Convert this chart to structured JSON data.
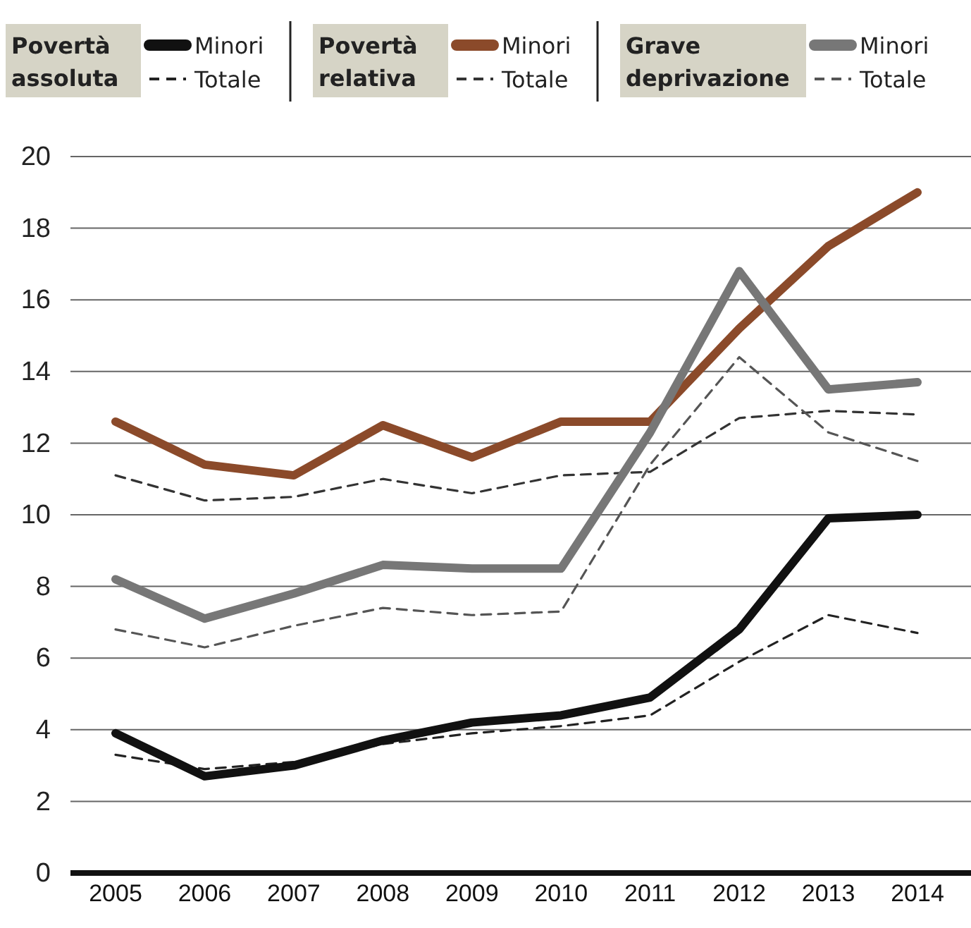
{
  "chart_data": {
    "type": "line",
    "categories": [
      "2005",
      "2006",
      "2007",
      "2008",
      "2009",
      "2010",
      "2011",
      "2012",
      "2013",
      "2014"
    ],
    "series": [
      {
        "name": "Minori",
        "color": "#111111",
        "line_style": "solid",
        "values": [
          3.9,
          2.7,
          3.0,
          3.7,
          4.2,
          4.4,
          4.9,
          6.8,
          9.9,
          10.0
        ]
      },
      {
        "name": "Totale",
        "color": "#222222",
        "line_style": "dashed",
        "values": [
          3.3,
          2.9,
          3.1,
          3.6,
          3.9,
          4.1,
          4.4,
          5.9,
          7.2,
          6.7
        ]
      },
      {
        "name": "Minori",
        "color": "#8b4a2a",
        "line_style": "solid",
        "values": [
          12.6,
          11.4,
          11.1,
          12.5,
          11.6,
          12.6,
          12.6,
          15.2,
          17.5,
          19.0
        ]
      },
      {
        "name": "Totale",
        "color": "#333333",
        "line_style": "dashed",
        "values": [
          11.1,
          10.4,
          10.5,
          11.0,
          10.6,
          11.1,
          11.2,
          12.7,
          12.9,
          12.8
        ]
      },
      {
        "name": "Minori",
        "color": "#777777",
        "line_style": "solid",
        "values": [
          8.2,
          7.1,
          7.8,
          8.6,
          8.5,
          8.5,
          12.3,
          16.8,
          13.5,
          13.7
        ]
      },
      {
        "name": "Totale",
        "color": "#555555",
        "line_style": "dashed",
        "values": [
          6.8,
          6.3,
          6.9,
          7.4,
          7.2,
          7.3,
          11.4,
          14.4,
          12.3,
          11.5
        ]
      }
    ],
    "annotations": [
      "Povertà assoluta",
      "Povertà relativa",
      "Grave deprivazione"
    ],
    "ylim": [
      0,
      20
    ],
    "yticks": [
      0,
      2,
      4,
      6,
      8,
      10,
      12,
      14,
      16,
      18,
      20
    ],
    "grid": "y",
    "legend": "top",
    "marker": "none"
  }
}
